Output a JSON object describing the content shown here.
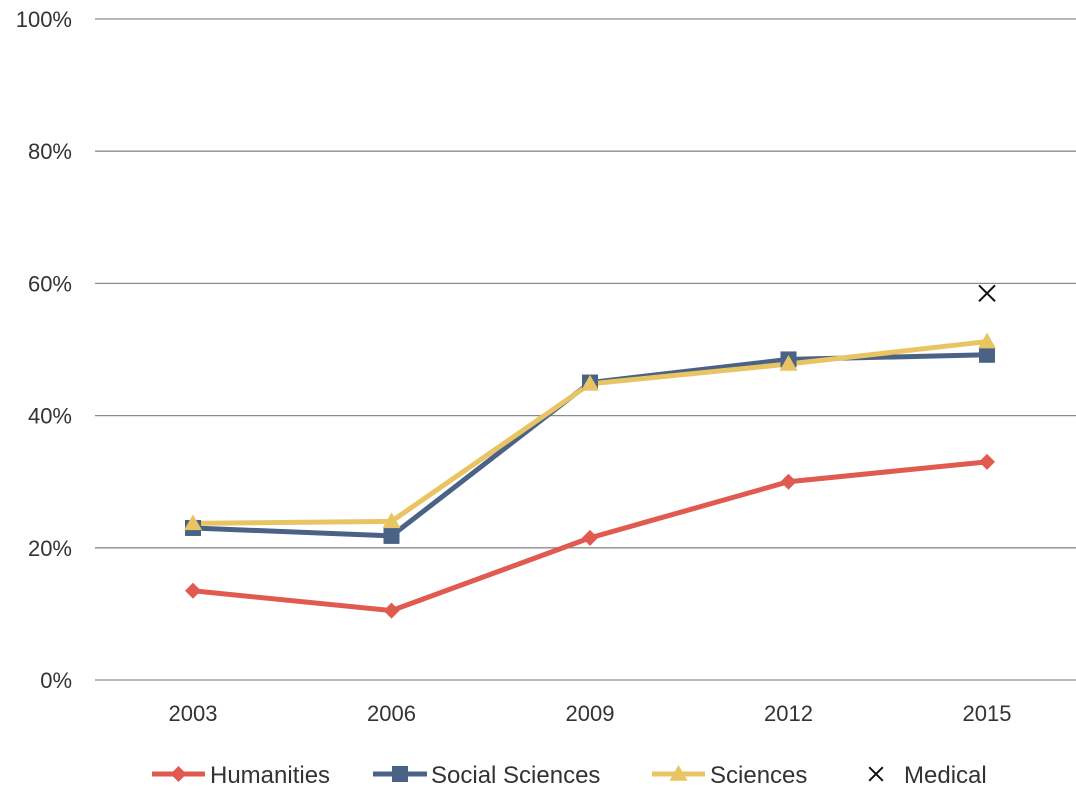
{
  "chart_data": {
    "type": "line",
    "categories": [
      "2003",
      "2006",
      "2009",
      "2012",
      "2015"
    ],
    "ylim": [
      0,
      100
    ],
    "y_ticks": [
      "0%",
      "20%",
      "40%",
      "60%",
      "80%",
      "100%"
    ],
    "y_tick_values": [
      0,
      20,
      40,
      60,
      80,
      100
    ],
    "grid": true,
    "legend_position": "bottom",
    "series": [
      {
        "name": "Humanities",
        "marker": "diamond",
        "color": "#e05a4f",
        "values": [
          13.5,
          10.5,
          21.5,
          30,
          33
        ]
      },
      {
        "name": "Social Sciences",
        "marker": "square",
        "color": "#4a6286",
        "values": [
          23,
          21.8,
          45,
          48.5,
          49.2
        ]
      },
      {
        "name": "Sciences",
        "marker": "triangle",
        "color": "#e8c462",
        "values": [
          23.7,
          24,
          44.8,
          47.8,
          51.2
        ]
      },
      {
        "name": "Medical",
        "marker": "x",
        "color": "#111111",
        "values": [
          null,
          null,
          null,
          null,
          58.5
        ]
      }
    ]
  }
}
